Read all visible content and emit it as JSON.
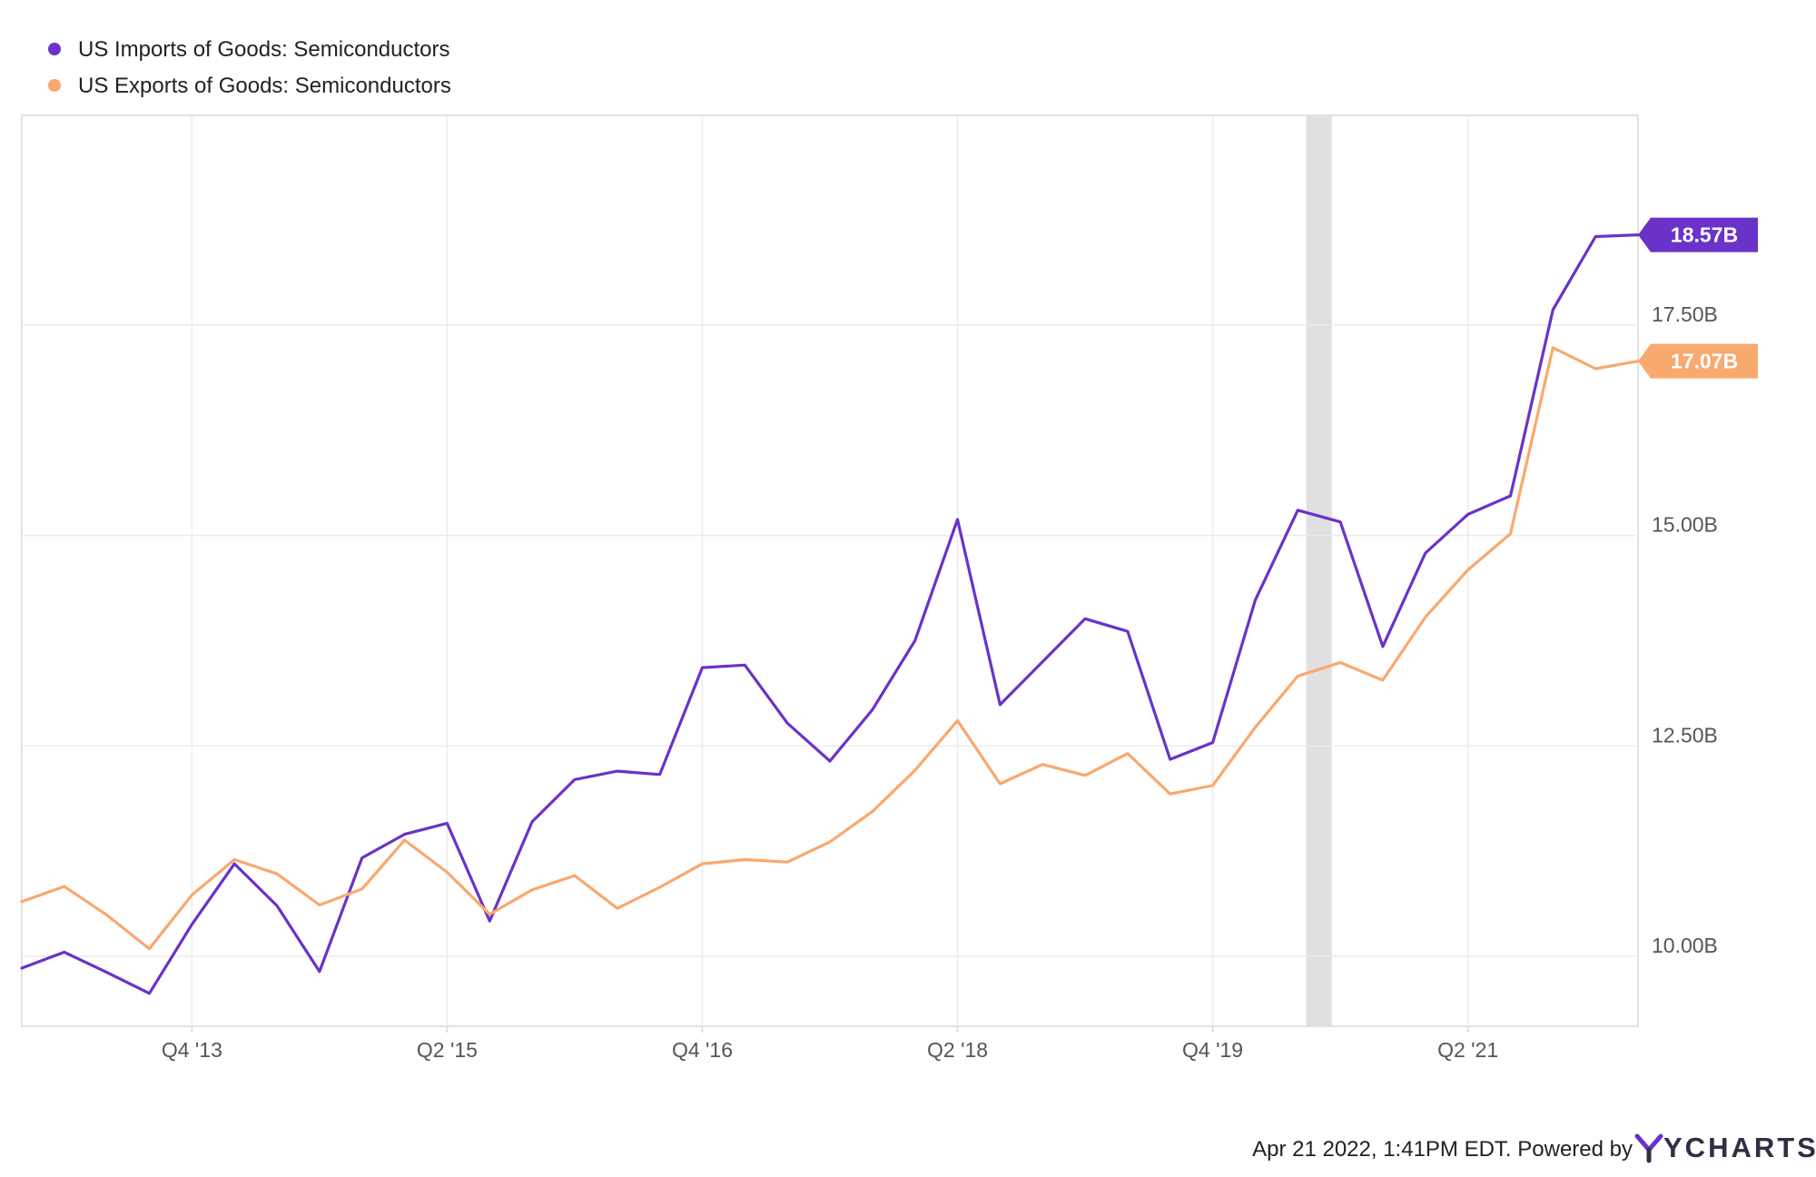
{
  "chart_data": {
    "type": "line",
    "title": "",
    "xlabel": "",
    "ylabel": "",
    "x_tick_labels": [
      "Q4 '13",
      "Q2 '15",
      "Q4 '16",
      "Q2 '18",
      "Q4 '19",
      "Q2 '21"
    ],
    "y_tick_labels": [
      "10.00B",
      "12.50B",
      "15.00B",
      "17.50B"
    ],
    "y_ticks": [
      10.0,
      12.5,
      15.0,
      17.5
    ],
    "ylim": [
      9.17,
      19.99
    ],
    "xlim": [
      0,
      38
    ],
    "x_unit": "quarters from Q4 '12 (start of the plotted series)",
    "x_tick_positions": [
      4,
      10,
      16,
      22,
      28,
      34
    ],
    "grid": true,
    "legend_position": "top-left",
    "recession_band": {
      "x_start": 30.2,
      "x_end": 30.8
    },
    "series": [
      {
        "name": "US Imports of Goods: Semiconductors",
        "color": "#6a32c9",
        "end_label": "18.57B",
        "values": [
          9.86,
          10.05,
          9.81,
          9.56,
          10.38,
          11.1,
          10.6,
          9.82,
          11.17,
          11.45,
          11.58,
          10.42,
          11.6,
          12.1,
          12.2,
          12.16,
          13.43,
          13.46,
          12.77,
          12.32,
          12.93,
          13.75,
          15.19,
          12.99,
          13.5,
          14.01,
          13.86,
          12.34,
          12.54,
          14.23,
          15.3,
          15.16,
          13.68,
          14.79,
          15.25,
          15.47,
          17.68,
          18.55,
          18.57
        ]
      },
      {
        "name": "US Exports of Goods: Semiconductors",
        "color": "#f9a86e",
        "end_label": "17.07B",
        "values": [
          10.65,
          10.83,
          10.49,
          10.09,
          10.73,
          11.15,
          10.98,
          10.61,
          10.8,
          11.38,
          11.0,
          10.5,
          10.79,
          10.96,
          10.57,
          10.82,
          11.1,
          11.15,
          11.12,
          11.36,
          11.72,
          12.21,
          12.8,
          12.05,
          12.28,
          12.15,
          12.41,
          11.93,
          12.03,
          12.72,
          13.33,
          13.49,
          13.28,
          14.03,
          14.59,
          15.02,
          17.23,
          16.98,
          17.07
        ]
      }
    ]
  },
  "footer": {
    "timestamp": "Apr 21 2022, 1:41PM EDT. Powered by",
    "brand": "YCHARTS"
  }
}
